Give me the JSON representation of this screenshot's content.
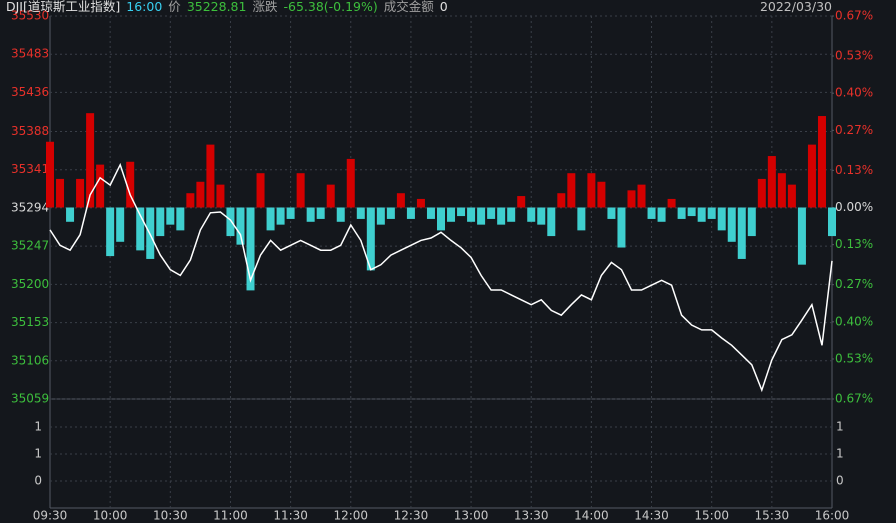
{
  "header": {
    "symbol": "DJI[道琼斯工业指数]",
    "time": "16:00",
    "price_label": "价",
    "price": "35228.81",
    "change_label": "涨跌",
    "change": "-65.38(-0.19%)",
    "amount_label": "成交金额",
    "amount": "0",
    "date": "2022/03/30"
  },
  "chart_data": [
    {
      "type": "line",
      "x": [
        "09:30",
        "09:35",
        "09:40",
        "09:45",
        "09:50",
        "09:55",
        "10:00",
        "10:05",
        "10:10",
        "10:15",
        "10:20",
        "10:25",
        "10:30",
        "10:35",
        "10:40",
        "10:45",
        "10:50",
        "10:55",
        "11:00",
        "11:05",
        "11:10",
        "11:15",
        "11:20",
        "11:25",
        "11:30",
        "11:35",
        "11:40",
        "11:45",
        "11:50",
        "11:55",
        "12:00",
        "12:05",
        "12:10",
        "12:15",
        "12:20",
        "12:25",
        "12:30",
        "12:35",
        "12:40",
        "12:45",
        "12:50",
        "12:55",
        "13:00",
        "13:05",
        "13:10",
        "13:15",
        "13:20",
        "13:25",
        "13:30",
        "13:35",
        "13:40",
        "13:45",
        "13:50",
        "13:55",
        "14:00",
        "14:05",
        "14:10",
        "14:15",
        "14:20",
        "14:25",
        "14:30",
        "14:35",
        "14:40",
        "14:45",
        "14:50",
        "14:55",
        "15:00",
        "15:05",
        "15:10",
        "15:15",
        "15:20",
        "15:25",
        "15:30",
        "15:35",
        "15:40",
        "15:45",
        "15:50",
        "15:55",
        "16:00"
      ],
      "series": [
        {
          "type": "bar",
          "axis": "y2",
          "colors": {
            "up": "#d40000",
            "down": "#3fcfcf"
          },
          "values": [
            0.23,
            0.1,
            -0.05,
            0.1,
            0.33,
            0.15,
            -0.17,
            -0.12,
            0.16,
            -0.15,
            -0.18,
            -0.1,
            -0.06,
            -0.08,
            0.05,
            0.09,
            0.22,
            0.08,
            -0.1,
            -0.13,
            -0.29,
            0.12,
            -0.08,
            -0.06,
            -0.04,
            0.12,
            -0.05,
            -0.04,
            0.08,
            -0.05,
            0.17,
            -0.04,
            -0.22,
            -0.06,
            -0.04,
            0.05,
            -0.04,
            0.03,
            -0.04,
            -0.08,
            -0.05,
            -0.03,
            -0.05,
            -0.06,
            -0.04,
            -0.06,
            -0.05,
            0.04,
            -0.05,
            -0.06,
            -0.1,
            0.05,
            0.12,
            -0.08,
            0.12,
            0.09,
            -0.04,
            -0.14,
            0.06,
            0.08,
            -0.04,
            -0.05,
            0.03,
            -0.04,
            -0.03,
            -0.05,
            -0.04,
            -0.08,
            -0.12,
            -0.18,
            -0.1,
            0.1,
            0.18,
            0.12,
            0.08,
            -0.2,
            0.22,
            0.32,
            -0.1
          ]
        },
        {
          "type": "line",
          "color": "#ffffff",
          "values": [
            35267,
            35248,
            35242,
            35261,
            35310,
            35331,
            35322,
            35347,
            35310,
            35285,
            35261,
            35236,
            35218,
            35211,
            35230,
            35267,
            35288,
            35289,
            35279,
            35261,
            35205,
            35236,
            35254,
            35242,
            35248,
            35254,
            35248,
            35242,
            35242,
            35248,
            35273,
            35254,
            35218,
            35224,
            35236,
            35242,
            35248,
            35254,
            35257,
            35264,
            35254,
            35245,
            35233,
            35211,
            35193,
            35193,
            35187,
            35181,
            35175,
            35181,
            35168,
            35162,
            35175,
            35187,
            35181,
            35211,
            35227,
            35218,
            35193,
            35193,
            35199,
            35205,
            35199,
            35162,
            35150,
            35144,
            35144,
            35134,
            35125,
            35113,
            35101,
            35070,
            35107,
            35132,
            35138,
            35156,
            35175,
            35125,
            35228.81
          ]
        }
      ],
      "ylim": [
        35059,
        35530
      ],
      "yticks": [
        35530,
        35483,
        35436,
        35388,
        35341,
        35294,
        35247,
        35200,
        35153,
        35106,
        35059
      ],
      "y2lim": [
        -0.67,
        0.67
      ],
      "y2ticks": [
        {
          "value": 0.67,
          "label": "0.67%"
        },
        {
          "value": 0.53,
          "label": "0.53%"
        },
        {
          "value": 0.4,
          "label": "0.40%"
        },
        {
          "value": 0.27,
          "label": "0.27%"
        },
        {
          "value": 0.13,
          "label": "0.13%"
        },
        {
          "value": 0,
          "label": "0.00%"
        },
        {
          "value": -0.13,
          "label": "0.13%"
        },
        {
          "value": -0.27,
          "label": "0.27%"
        },
        {
          "value": -0.4,
          "label": "0.40%"
        },
        {
          "value": -0.53,
          "label": "0.53%"
        },
        {
          "value": -0.67,
          "label": "0.67%"
        }
      ],
      "xticks": [
        "09:30",
        "10:00",
        "10:30",
        "11:00",
        "11:30",
        "12:00",
        "12:30",
        "13:00",
        "13:30",
        "14:00",
        "14:30",
        "15:00",
        "15:30",
        "16:00"
      ],
      "tick_colors": {
        "up": "#e8312a",
        "flat": "#d8d8d8",
        "down": "#3dbf3d"
      },
      "grid": true
    },
    {
      "type": "bar",
      "ylim": [
        -0.7,
        2.1
      ],
      "yticks": [
        {
          "value": 1.4,
          "label": "1"
        },
        {
          "value": 0.7,
          "label": "1"
        },
        0
      ],
      "grid": true
    }
  ]
}
